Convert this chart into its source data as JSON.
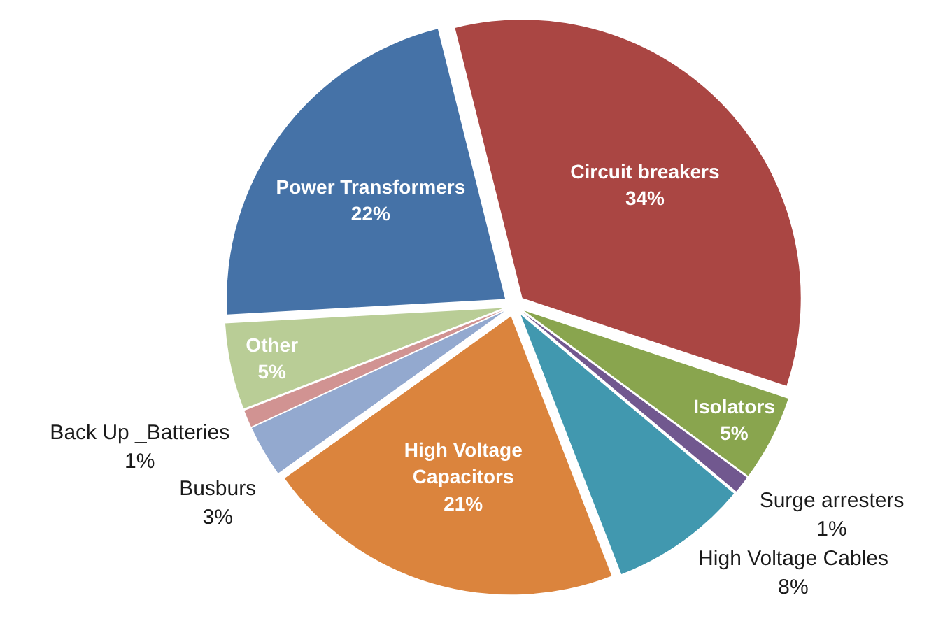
{
  "chart_data": {
    "type": "pie",
    "categories": [
      "Circuit breakers",
      "Isolators",
      "Surge arresters",
      "High Voltage Cables",
      "High Voltage Capacitors",
      "Busburs",
      "Back Up _Batteries",
      "Other",
      "Power Transformers"
    ],
    "values": [
      34,
      5,
      1,
      8,
      21,
      3,
      1,
      5,
      22
    ],
    "value_labels": [
      "34%",
      "5%",
      "1%",
      "8%",
      "21%",
      "3%",
      "1%",
      "5%",
      "22%"
    ],
    "colors": [
      "#aa4643",
      "#89a54e",
      "#71588f",
      "#4198af",
      "#db843d",
      "#93a9cf",
      "#d19392",
      "#b9cd96",
      "#4572a7"
    ]
  }
}
